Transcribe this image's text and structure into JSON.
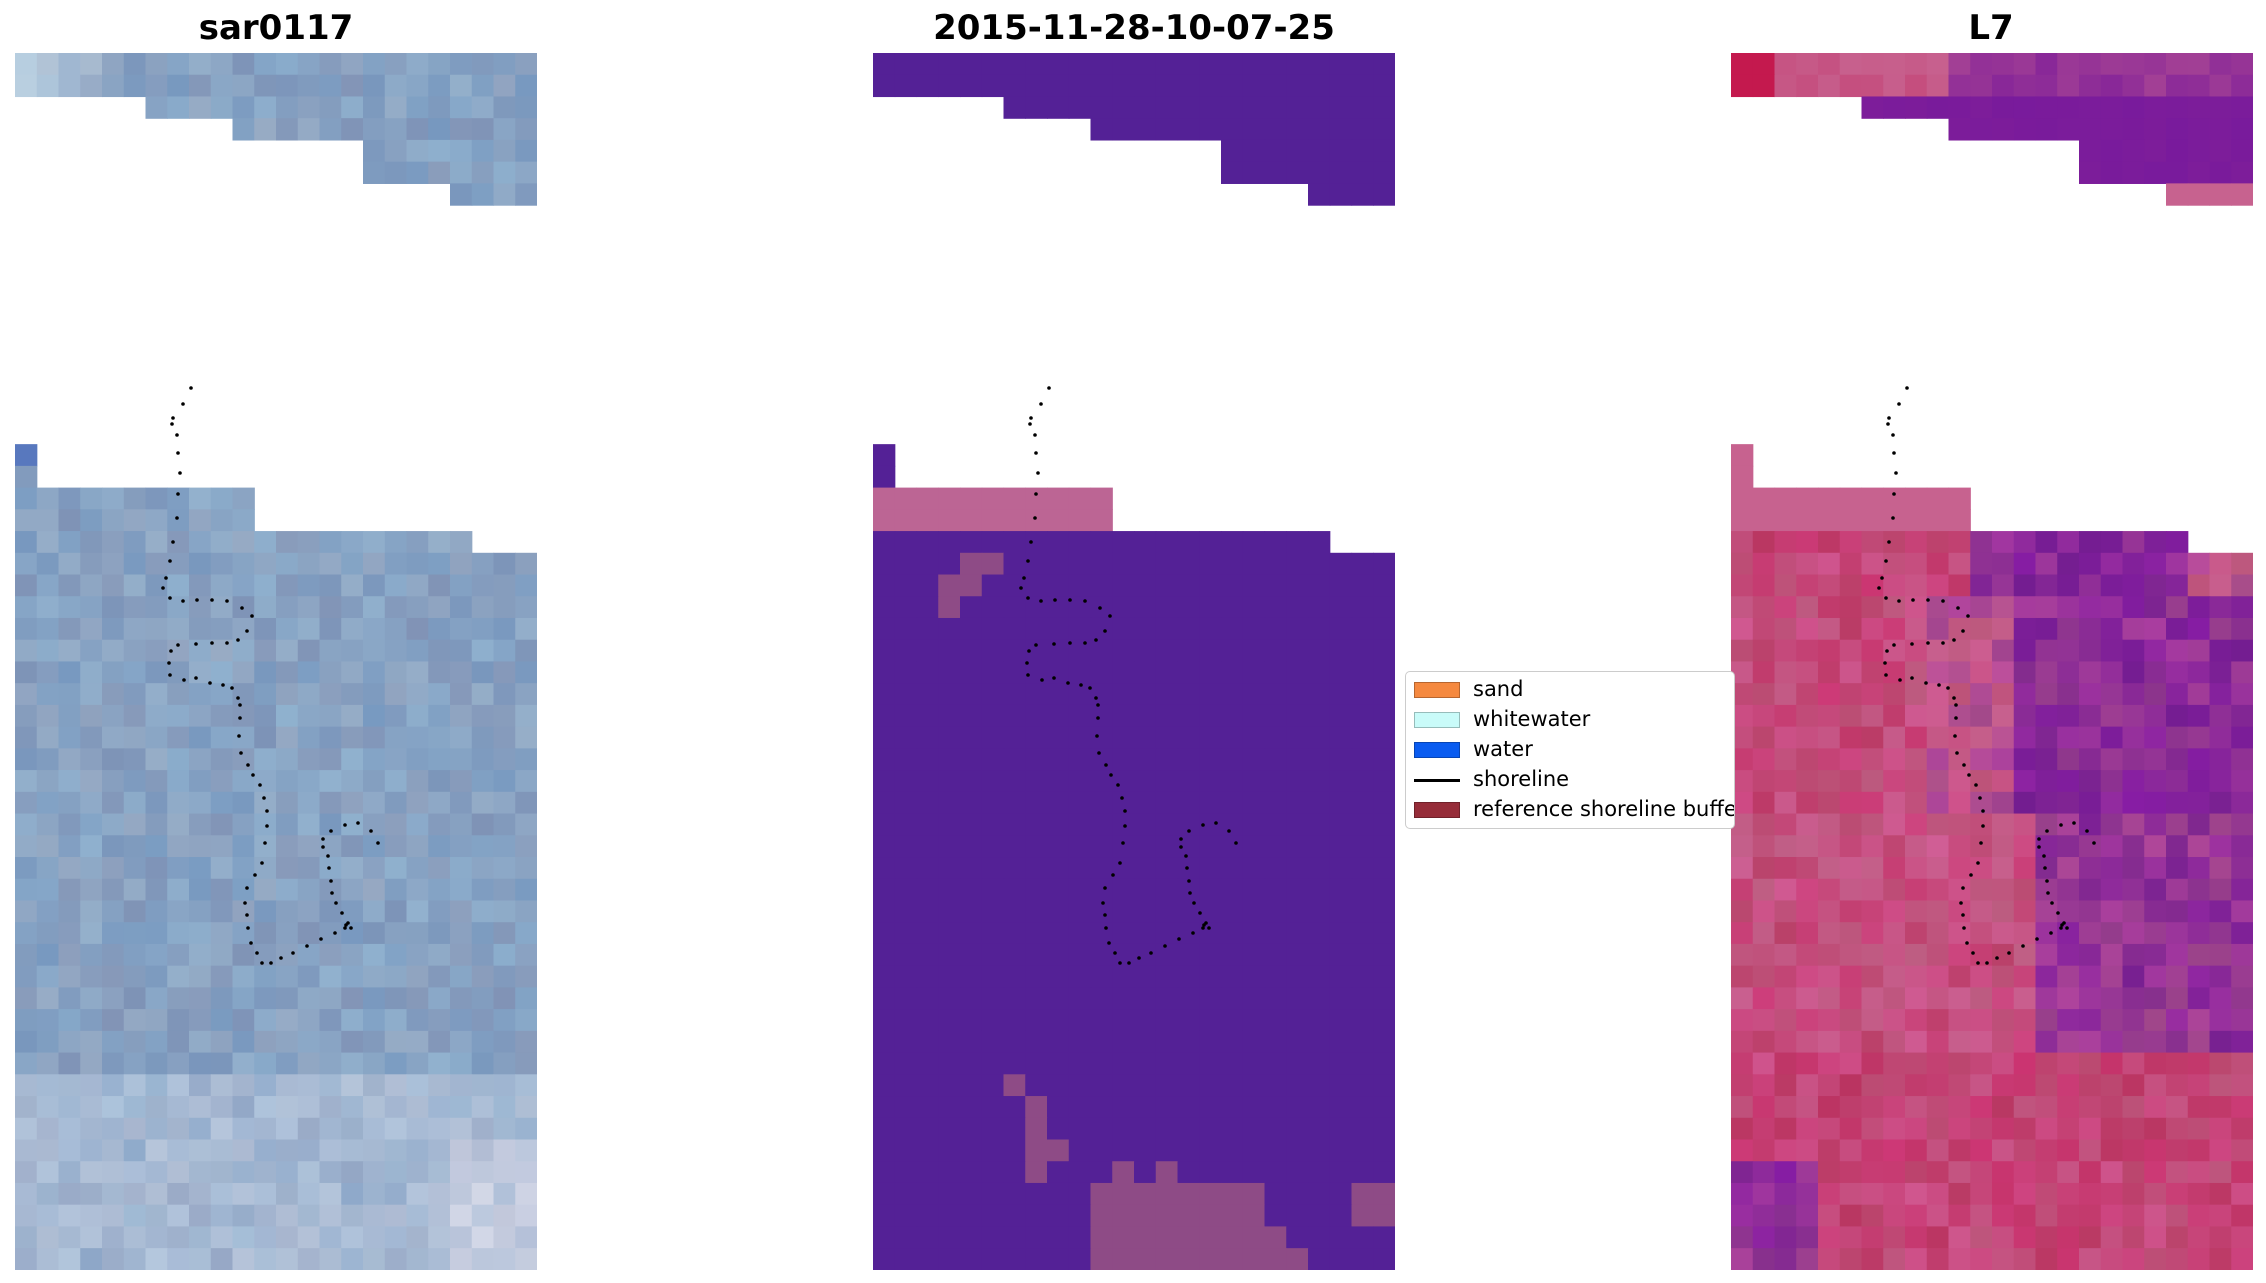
{
  "panels": [
    {
      "id": "rgb",
      "title": "sar0117"
    },
    {
      "id": "class",
      "title": "2015-11-28-10-07-25"
    },
    {
      "id": "index",
      "title": "L7"
    }
  ],
  "legend": {
    "items": [
      {
        "label": "sand",
        "color": "#f58940",
        "kind": "patch"
      },
      {
        "label": "whitewater",
        "color": "#c9fbf9",
        "kind": "patch"
      },
      {
        "label": "water",
        "color": "#0a5cf0",
        "kind": "patch"
      },
      {
        "label": "shoreline",
        "color": "#000000",
        "kind": "line"
      },
      {
        "label": "reference shoreline buffer",
        "color": "#962d39",
        "kind": "patch"
      }
    ]
  },
  "colors": {
    "class_purple": "#542196",
    "class_pink": "#bc6594",
    "class_mauve": "#8e4b86",
    "rgb_base": "#88a2c2",
    "index_pink": "#c7628f",
    "index_purple": "#7d1d9a",
    "index_red": "#c01d55"
  }
}
